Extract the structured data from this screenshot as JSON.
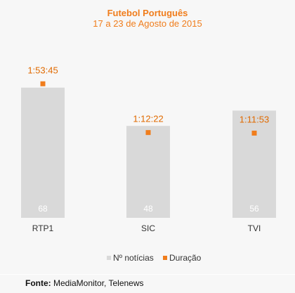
{
  "chart_data": {
    "type": "bar",
    "title": "Futebol Português",
    "subtitle": "17 a 23 de Agosto de 2015",
    "categories": [
      "RTP1",
      "SIC",
      "TVI"
    ],
    "series": [
      {
        "name": "Nº notícias",
        "type": "bar",
        "color": "#d9d9d9",
        "values": [
          68,
          48,
          56
        ],
        "labels": [
          "68",
          "48",
          "56"
        ]
      },
      {
        "name": "Duração",
        "type": "marker",
        "color": "#f07d1c",
        "values": [
          "1:53:45",
          "1:12:22",
          "1:11:53"
        ],
        "labels": [
          "1:53:45",
          "1:12:22",
          "1:11:53"
        ]
      }
    ],
    "legend": "bottom",
    "grid": false
  },
  "source": {
    "label": "Fonte:",
    "text": " MediaMonitor, Telenews"
  }
}
